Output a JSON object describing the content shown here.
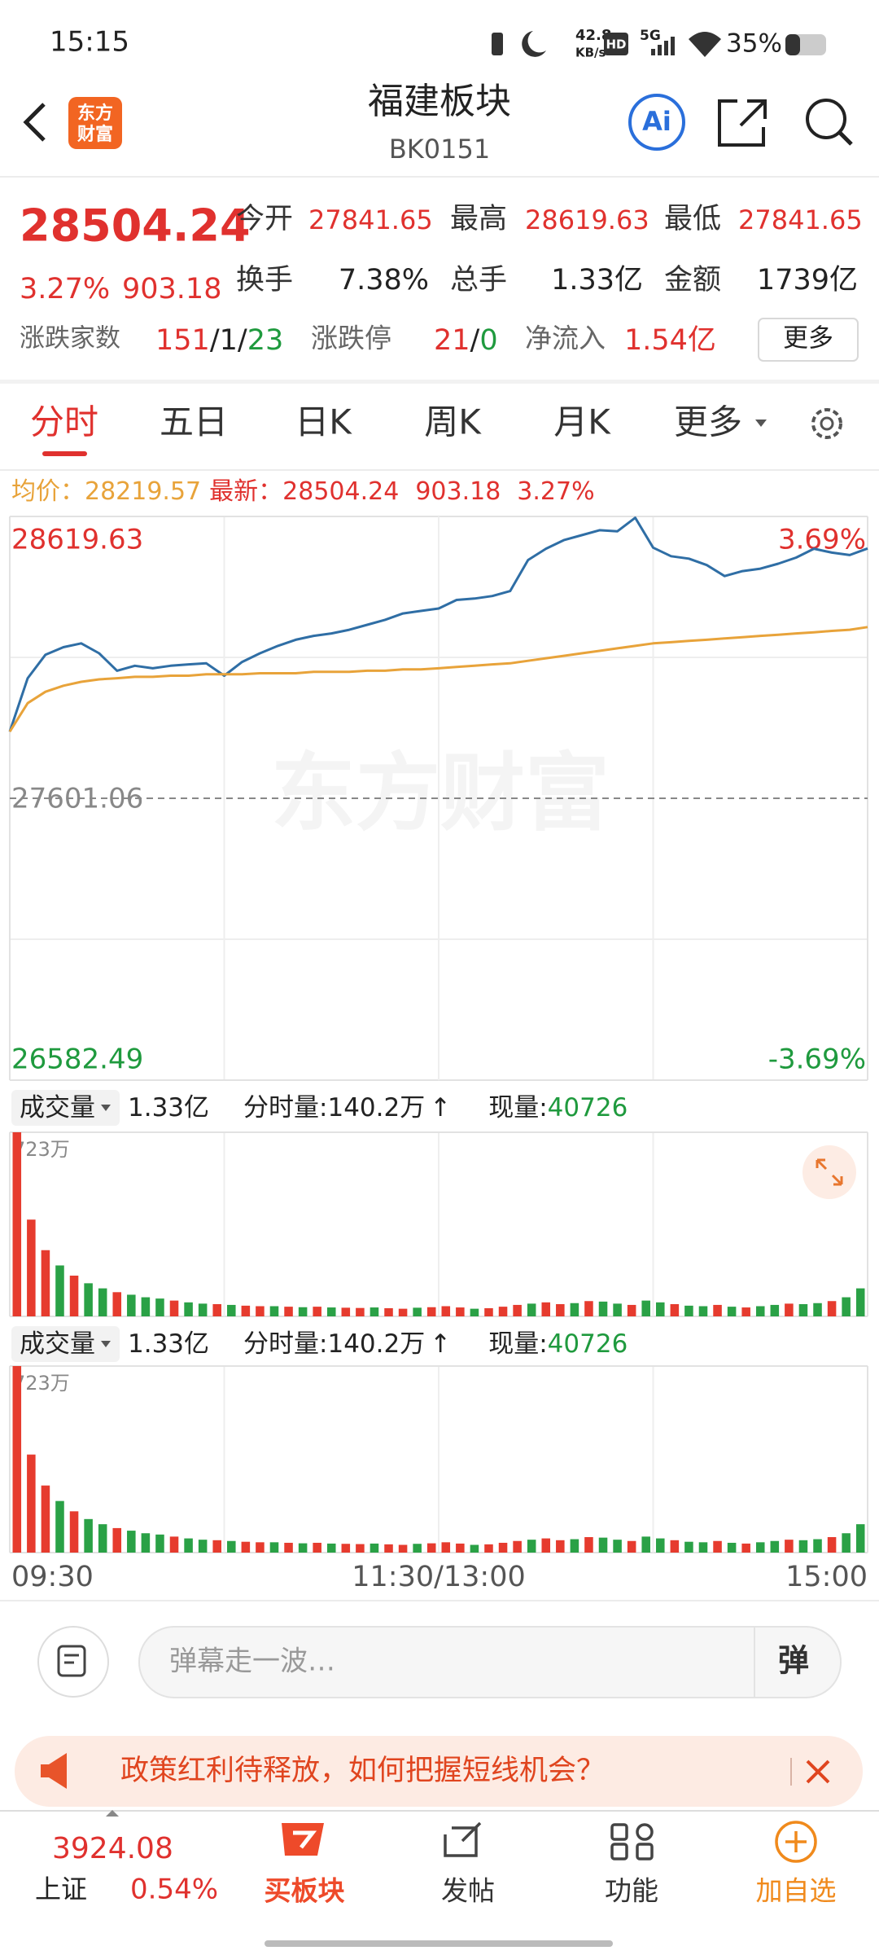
{
  "status_bar": {
    "time": "15:15",
    "net_speed": "42.8",
    "net_unit": "KB/s",
    "hd": "HD",
    "network": "5G",
    "battery": "35%"
  },
  "header": {
    "logo_line1": "东方",
    "logo_line2": "财富",
    "title": "福建板块",
    "code": "BK0151",
    "ai": "Ai"
  },
  "quote": {
    "price": "28504.24",
    "change_pct": "3.27%",
    "change": "903.18",
    "stats": [
      {
        "label": "今开",
        "value": "27841.65"
      },
      {
        "label": "最高",
        "value": "28619.63"
      },
      {
        "label": "最低",
        "value": "27841.65"
      },
      {
        "label": "换手",
        "value": "7.38%"
      },
      {
        "label": "总手",
        "value": "1.33亿"
      },
      {
        "label": "金额",
        "value": "1739亿"
      }
    ],
    "breadth_label": "涨跌家数",
    "breadth_up": "151",
    "sep": "/",
    "breadth_flat": "1",
    "breadth_down": "23",
    "limit_label": "涨跌停",
    "limit_up": "21",
    "limit_down": "0",
    "inflow_label": "净流入",
    "inflow": "1.54亿",
    "more": "更多"
  },
  "tabs": [
    "分时",
    "五日",
    "日K",
    "周K",
    "月K",
    "更多"
  ],
  "legend": {
    "avg_label": "均价：",
    "avg": "28219.57",
    "last_label": "最新：",
    "last": "28504.24",
    "change": "903.18",
    "change_pct": "3.27%"
  },
  "chart_data": [
    {
      "type": "line",
      "watermark": "东方财富",
      "x": [
        0,
        5,
        10,
        15,
        20,
        25,
        30,
        35,
        40,
        45,
        50,
        55,
        60,
        65,
        70,
        75,
        80,
        85,
        90,
        95,
        100,
        105,
        110,
        115,
        120,
        125,
        130,
        135,
        140,
        145,
        150,
        155,
        160,
        165,
        170,
        175,
        180,
        185,
        190,
        195,
        200,
        205,
        210,
        215,
        220,
        225,
        230,
        235,
        240
      ],
      "series": [
        {
          "color": "#2f6ea5",
          "values": [
            27842,
            28035,
            28120,
            28147,
            28161,
            28125,
            28062,
            28080,
            28071,
            28080,
            28085,
            28089,
            28044,
            28094,
            28125,
            28152,
            28174,
            28188,
            28197,
            28210,
            28228,
            28246,
            28269,
            28278,
            28287,
            28318,
            28323,
            28332,
            28350,
            28462,
            28503,
            28534,
            28552,
            28570,
            28566,
            28615,
            28507,
            28476,
            28467,
            28444,
            28404,
            28422,
            28431,
            28449,
            28471,
            28503,
            28489,
            28480,
            28504
          ]
        },
        {
          "color": "#e8a33a",
          "values": [
            27842,
            27945,
            27986,
            28008,
            28022,
            28031,
            28035,
            28040,
            28040,
            28044,
            28044,
            28049,
            28049,
            28049,
            28053,
            28053,
            28053,
            28058,
            28058,
            28058,
            28062,
            28062,
            28067,
            28067,
            28071,
            28076,
            28080,
            28085,
            28089,
            28098,
            28107,
            28116,
            28125,
            28134,
            28143,
            28152,
            28161,
            28165,
            28170,
            28174,
            28179,
            28183,
            28188,
            28192,
            28197,
            28201,
            28206,
            28210,
            28220
          ]
        }
      ],
      "xlim": [
        0,
        240
      ],
      "xticks": [
        {
          "value": 0,
          "label": "09:30"
        },
        {
          "value": 120,
          "label": "11:30/13:00"
        },
        {
          "value": 240,
          "label": "15:00"
        }
      ],
      "ylim": [
        26582.49,
        28619.63
      ],
      "yticks": [
        28619.63,
        27601.06,
        26582.49
      ],
      "y2lim": [
        -3.69,
        3.69
      ],
      "y2ticks": [
        {
          "value": 3.69,
          "label": "3.69%"
        },
        {
          "value": -3.69,
          "label": "-3.69%"
        }
      ]
    },
    {
      "type": "bar",
      "title": "成交量",
      "total": "1.33亿",
      "minute_label": "分时量:",
      "minute_value": "140.2万",
      "arrow": "↑",
      "now_label": "现量:",
      "now_value": "40726",
      "ylim": [
        0,
        723
      ],
      "yticks": [
        {
          "value": 723,
          "label": "723万"
        }
      ],
      "values": [
        723,
        380,
        260,
        200,
        160,
        130,
        110,
        95,
        85,
        75,
        70,
        62,
        55,
        50,
        48,
        45,
        42,
        40,
        40,
        38,
        36,
        38,
        35,
        34,
        33,
        35,
        32,
        30,
        34,
        36,
        40,
        35,
        30,
        32,
        38,
        45,
        50,
        55,
        48,
        52,
        60,
        58,
        50,
        45,
        62,
        55,
        48,
        42,
        40,
        45,
        38,
        35,
        40,
        45,
        50,
        48,
        52,
        60,
        75,
        110
      ],
      "colors": [
        "#e63b2e",
        "#e63b2e",
        "#e63b2e",
        "#2aa146",
        "#e63b2e",
        "#2aa146",
        "#2aa146",
        "#e63b2e",
        "#2aa146",
        "#2aa146",
        "#2aa146",
        "#e63b2e",
        "#2aa146",
        "#2aa146",
        "#e63b2e",
        "#2aa146",
        "#e63b2e",
        "#e63b2e",
        "#2aa146",
        "#e63b2e",
        "#2aa146",
        "#e63b2e",
        "#2aa146",
        "#e63b2e",
        "#e63b2e",
        "#2aa146",
        "#e63b2e",
        "#e63b2e",
        "#2aa146",
        "#e63b2e",
        "#e63b2e",
        "#e63b2e",
        "#2aa146",
        "#e63b2e",
        "#e63b2e",
        "#e63b2e",
        "#2aa146",
        "#e63b2e",
        "#e63b2e",
        "#2aa146",
        "#e63b2e",
        "#2aa146",
        "#2aa146",
        "#e63b2e",
        "#2aa146",
        "#2aa146",
        "#e63b2e",
        "#2aa146",
        "#2aa146",
        "#e63b2e",
        "#2aa146",
        "#e63b2e",
        "#2aa146",
        "#2aa146",
        "#e63b2e",
        "#2aa146",
        "#2aa146",
        "#e63b2e",
        "#2aa146",
        "#2aa146"
      ]
    }
  ],
  "bottom": {
    "danmaku_placeholder": "弹幕走一波…",
    "danmaku_button": "弹",
    "banner": "政策红利待释放，如何把握短线机会？",
    "index_value": "3924.08",
    "index_name": "上证",
    "index_change": "0.54%",
    "nav": [
      "买板块",
      "发帖",
      "功能",
      "加自选"
    ]
  }
}
